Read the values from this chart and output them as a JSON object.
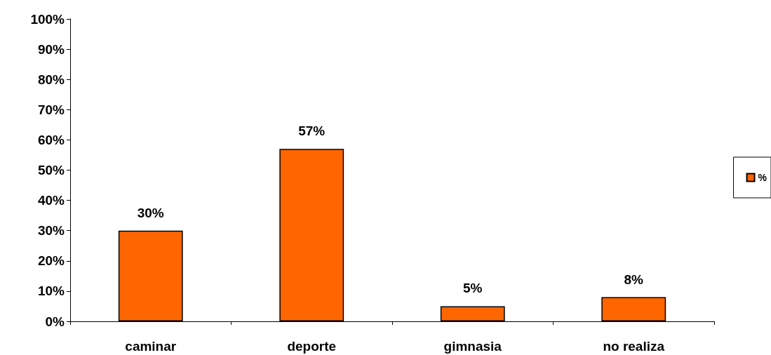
{
  "chart_data": {
    "type": "bar",
    "categories": [
      "caminar",
      "deporte",
      "gimnasia",
      "no realiza"
    ],
    "series": [
      {
        "name": "%",
        "color": "#ff6600",
        "values": [
          30,
          57,
          5,
          8
        ],
        "value_labels": [
          "30%",
          "57%",
          "5%",
          "8%"
        ]
      }
    ],
    "ylim": [
      0,
      100
    ],
    "yticks": [
      {
        "value": 0,
        "label": "0%"
      },
      {
        "value": 10,
        "label": "10%"
      },
      {
        "value": 20,
        "label": "20%"
      },
      {
        "value": 30,
        "label": "30%"
      },
      {
        "value": 40,
        "label": "40%"
      },
      {
        "value": 50,
        "label": "50%"
      },
      {
        "value": 60,
        "label": "60%"
      },
      {
        "value": 70,
        "label": "70%"
      },
      {
        "value": 80,
        "label": "80%"
      },
      {
        "value": 90,
        "label": "90%"
      },
      {
        "value": 100,
        "label": "100%"
      }
    ],
    "grid": false,
    "legend": "right"
  }
}
